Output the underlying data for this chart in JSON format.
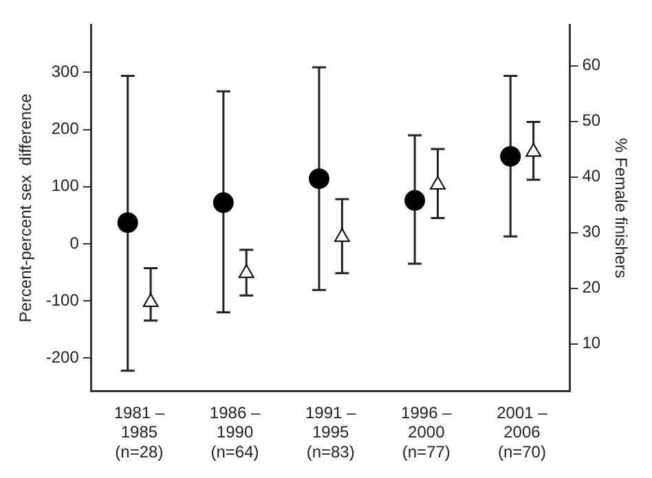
{
  "chart_data": {
    "type": "scatter",
    "ylabel": "Percent-percent sex  difference",
    "y2label": "% Female finishers",
    "categories": [
      "1981 –\n1985\n(n=28)",
      "1986 –\n1990\n(n=64)",
      "1991 –\n1995\n(n=83)",
      "1996 –\n2000\n(n=77)",
      "2001 –\n2006\n(n=70)"
    ],
    "series": [
      {
        "color": "#000000",
        "marker": "circle",
        "values": [
          37,
          72,
          114,
          76,
          153
        ],
        "errors": [
          [
            -222,
            294
          ],
          [
            -120,
            267
          ],
          [
            -81,
            309
          ],
          [
            -35,
            190
          ],
          [
            13,
            294
          ]
        ]
      },
      {
        "color": "#ffffff",
        "marker": "triangle",
        "axis": "y2",
        "values": [
          17.5,
          22.7,
          29.2,
          38.6,
          44.5
        ],
        "errors": [
          [
            14.2,
            23.6
          ],
          [
            18.7,
            26.9
          ],
          [
            22.7,
            36.0
          ],
          [
            32.6,
            45.0
          ],
          [
            39.5,
            49.9
          ]
        ]
      }
    ],
    "ylim": [
      -258,
      383
    ],
    "yticks": [
      -200,
      -100,
      0,
      100,
      200,
      300
    ],
    "y2lim": [
      1.5,
      67.3
    ],
    "y2ticks": [
      10,
      20,
      30,
      40,
      50,
      60
    ],
    "grid": false,
    "legend": false
  }
}
